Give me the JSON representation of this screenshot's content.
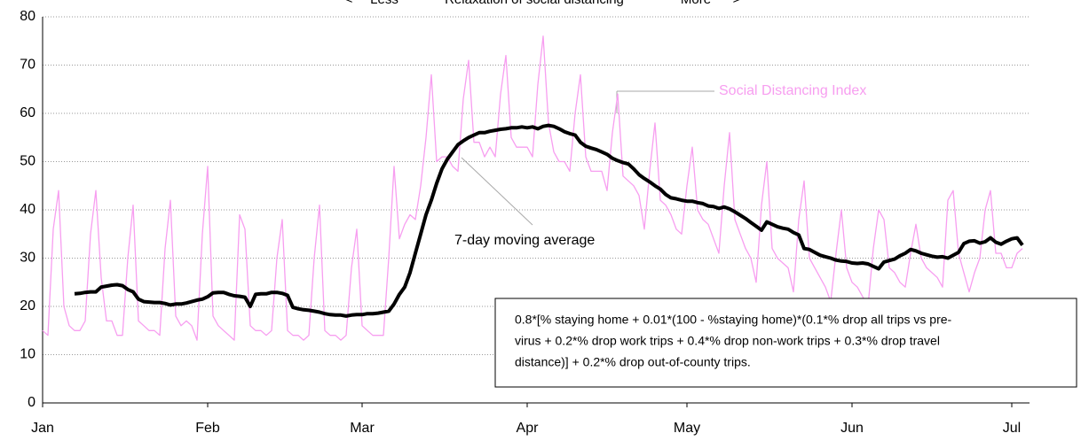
{
  "chart_data": {
    "type": "line",
    "header": [
      "<",
      "Less",
      "Relaxation of social distancing",
      "More",
      ">"
    ],
    "x": [
      0,
      1,
      2,
      3,
      4,
      5,
      6,
      7,
      8,
      9,
      10,
      11,
      12,
      13,
      14,
      15,
      16,
      17,
      18,
      19,
      20,
      21,
      22,
      23,
      24,
      25,
      26,
      27,
      28,
      29,
      30,
      31,
      32,
      33,
      34,
      35,
      36,
      37,
      38,
      39,
      40,
      41,
      42,
      43,
      44,
      45,
      46,
      47,
      48,
      49,
      50,
      51,
      52,
      53,
      54,
      55,
      56,
      57,
      58,
      59,
      60,
      61,
      62,
      63,
      64,
      65,
      66,
      67,
      68,
      69,
      70,
      71,
      72,
      73,
      74,
      75,
      76,
      77,
      78,
      79,
      80,
      81,
      82,
      83,
      84,
      85,
      86,
      87,
      88,
      89,
      90,
      91,
      92,
      93,
      94,
      95,
      96,
      97,
      98,
      99,
      100,
      101,
      102,
      103,
      104,
      105,
      106,
      107,
      108,
      109,
      110,
      111,
      112,
      113,
      114,
      115,
      116,
      117,
      118,
      119,
      120,
      121,
      122,
      123,
      124,
      125,
      126,
      127,
      128,
      129,
      130,
      131,
      132,
      133,
      134,
      135,
      136,
      137,
      138,
      139,
      140,
      141,
      142,
      143,
      144,
      145,
      146,
      147,
      148,
      149,
      150,
      151,
      152,
      153,
      154,
      155,
      156,
      157,
      158,
      159,
      160,
      161,
      162,
      163,
      164,
      165,
      166,
      167,
      168,
      169,
      170,
      171,
      172,
      173,
      174,
      175,
      176,
      177,
      178,
      179,
      180,
      181,
      182,
      183,
      184
    ],
    "series": [
      {
        "name": "Social Distancing Index",
        "color": "#f79ef0",
        "width": 1.3,
        "values": [
          15,
          14,
          36,
          44,
          20,
          16,
          15,
          15,
          17,
          35,
          44,
          26,
          17,
          17,
          14,
          14,
          30,
          41,
          17,
          16,
          15,
          15,
          14,
          32,
          42,
          18,
          16,
          17,
          16,
          13,
          35,
          49,
          18,
          16,
          15,
          14,
          13,
          39,
          36,
          16,
          15,
          15,
          14,
          15,
          30,
          38,
          15,
          14,
          14,
          13,
          14,
          30,
          41,
          15,
          14,
          14,
          13,
          14,
          28,
          36,
          16,
          15,
          14,
          14,
          14,
          30,
          49,
          34,
          37,
          39,
          38,
          45,
          55,
          68,
          50,
          51,
          51,
          49,
          48,
          63,
          71,
          54,
          54,
          51,
          53,
          51,
          64,
          72,
          55,
          53,
          53,
          53,
          51,
          66,
          76,
          58,
          52,
          50,
          50,
          48,
          60,
          68,
          51,
          48,
          48,
          48,
          44,
          56,
          64,
          47,
          46,
          45,
          43,
          36,
          48,
          58,
          42,
          41,
          39,
          36,
          35,
          45,
          53,
          40,
          38,
          37,
          34,
          31,
          45,
          56,
          38,
          35,
          32,
          30,
          25,
          41,
          50,
          32,
          30,
          29,
          28,
          23,
          38,
          46,
          30,
          28,
          26,
          24,
          21,
          31,
          40,
          28,
          25,
          24,
          22,
          20,
          32,
          40,
          38,
          28,
          27,
          25,
          24,
          31,
          37,
          30,
          28,
          27,
          26,
          24,
          42,
          44,
          31,
          27,
          23,
          27,
          30,
          40,
          44,
          31,
          31,
          28,
          28,
          31,
          32
        ]
      },
      {
        "name": "7-day moving average",
        "color": "#000000",
        "width": 4,
        "values": [
          null,
          null,
          null,
          null,
          null,
          null,
          22.6,
          22.7,
          22.9,
          23,
          23,
          24,
          24.2,
          24.4,
          24.5,
          24.3,
          23.5,
          23,
          21.5,
          21,
          20.9,
          20.8,
          20.8,
          20.6,
          20.3,
          20.5,
          20.5,
          20.7,
          21,
          21.3,
          21.5,
          22,
          22.8,
          22.9,
          22.9,
          22.5,
          22.2,
          22.1,
          21.9,
          20,
          22.5,
          22.6,
          22.6,
          22.9,
          22.9,
          22.7,
          22.3,
          19.8,
          19.5,
          19.3,
          19.2,
          19,
          18.8,
          18.5,
          18.3,
          18.2,
          18.2,
          18,
          18.2,
          18.3,
          18.3,
          18.5,
          18.5,
          18.6,
          18.8,
          19,
          20.5,
          22.5,
          24,
          27,
          31,
          35,
          39,
          42,
          45.5,
          48.5,
          50.5,
          52,
          53.5,
          54.3,
          55,
          55.5,
          56,
          56,
          56.3,
          56.5,
          56.7,
          56.8,
          57,
          57,
          57.2,
          57,
          57.2,
          56.8,
          57.3,
          57.5,
          57.3,
          56.8,
          56.2,
          55.8,
          55.5,
          54,
          53.2,
          52.8,
          52.5,
          52,
          51.5,
          50.7,
          50.2,
          49.8,
          49.5,
          48.5,
          47.3,
          46.5,
          45.8,
          45,
          44.3,
          43.2,
          42.5,
          42.3,
          42,
          41.8,
          41.8,
          41.5,
          41.3,
          40.8,
          40.7,
          40.3,
          40.6,
          40.2,
          39.6,
          38.9,
          38.2,
          37.4,
          36.6,
          35.8,
          37.5,
          37,
          36.5,
          36.2,
          36,
          35.3,
          34.8,
          32,
          31.8,
          31.2,
          30.6,
          30.3,
          30,
          29.6,
          29.4,
          29.3,
          29,
          28.9,
          29,
          28.8,
          28.3,
          27.8,
          29.2,
          29.5,
          29.8,
          30.5,
          31,
          31.8,
          31.5,
          31,
          30.7,
          30.4,
          30.2,
          30.3,
          30,
          30.6,
          31.2,
          33,
          33.5,
          33.6,
          33.1,
          33.4,
          34.2,
          33.3,
          32.9,
          33.5,
          34,
          34.2,
          32.7
        ]
      }
    ],
    "xlim": [
      0,
      184
    ],
    "xticks": [
      {
        "value": 0,
        "label": "Jan"
      },
      {
        "value": 31,
        "label": "Feb"
      },
      {
        "value": 60,
        "label": "Mar"
      },
      {
        "value": 91,
        "label": "Apr"
      },
      {
        "value": 121,
        "label": "May"
      },
      {
        "value": 152,
        "label": "Jun"
      },
      {
        "value": 182,
        "label": "Jul"
      }
    ],
    "ylim": [
      0,
      80
    ],
    "yticks": [
      0,
      10,
      20,
      30,
      40,
      50,
      60,
      70,
      80
    ],
    "grid": true,
    "note": [
      "0.8*[% staying home + 0.01*(100 - %staying home)*(0.1*% drop all trips vs pre-",
      "virus + 0.2*% drop work trips + 0.4*% drop non-work trips + 0.3*% drop travel",
      "distance)] + 0.2*% drop out-of-county trips."
    ]
  }
}
